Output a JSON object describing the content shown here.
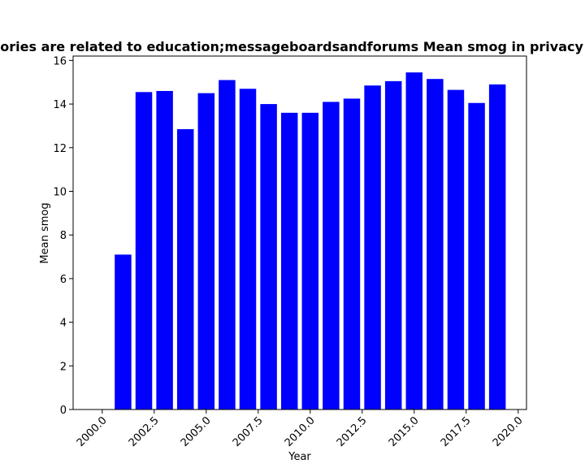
{
  "chart_data": {
    "type": "bar",
    "title": "Categories are related to education;messageboardsandforums Mean smog in privacy policies",
    "xlabel": "Year",
    "ylabel": "Mean smog",
    "x": [
      2001,
      2002,
      2003,
      2004,
      2005,
      2006,
      2007,
      2008,
      2009,
      2010,
      2011,
      2012,
      2013,
      2014,
      2015,
      2016,
      2017,
      2018,
      2019
    ],
    "values": [
      7.1,
      14.55,
      14.6,
      12.85,
      14.5,
      15.1,
      14.7,
      14.0,
      13.6,
      13.6,
      14.1,
      14.25,
      14.85,
      15.05,
      15.45,
      15.15,
      14.65,
      14.05,
      14.9
    ],
    "xlim": [
      1998.6,
      2020.4
    ],
    "ylim": [
      0,
      16.2
    ],
    "xticks": [
      2000.0,
      2002.5,
      2005.0,
      2007.5,
      2010.0,
      2012.5,
      2015.0,
      2017.5,
      2020.0
    ],
    "xtick_labels": [
      "2000.0",
      "2002.5",
      "2005.0",
      "2007.5",
      "2010.0",
      "2012.5",
      "2015.0",
      "2017.5",
      "2020.0"
    ],
    "yticks": [
      0,
      2,
      4,
      6,
      8,
      10,
      12,
      14,
      16
    ],
    "ytick_labels": [
      "0",
      "2",
      "4",
      "6",
      "8",
      "10",
      "12",
      "14",
      "16"
    ],
    "bar_color": "#0000ff",
    "grid": false,
    "legend": "none"
  }
}
